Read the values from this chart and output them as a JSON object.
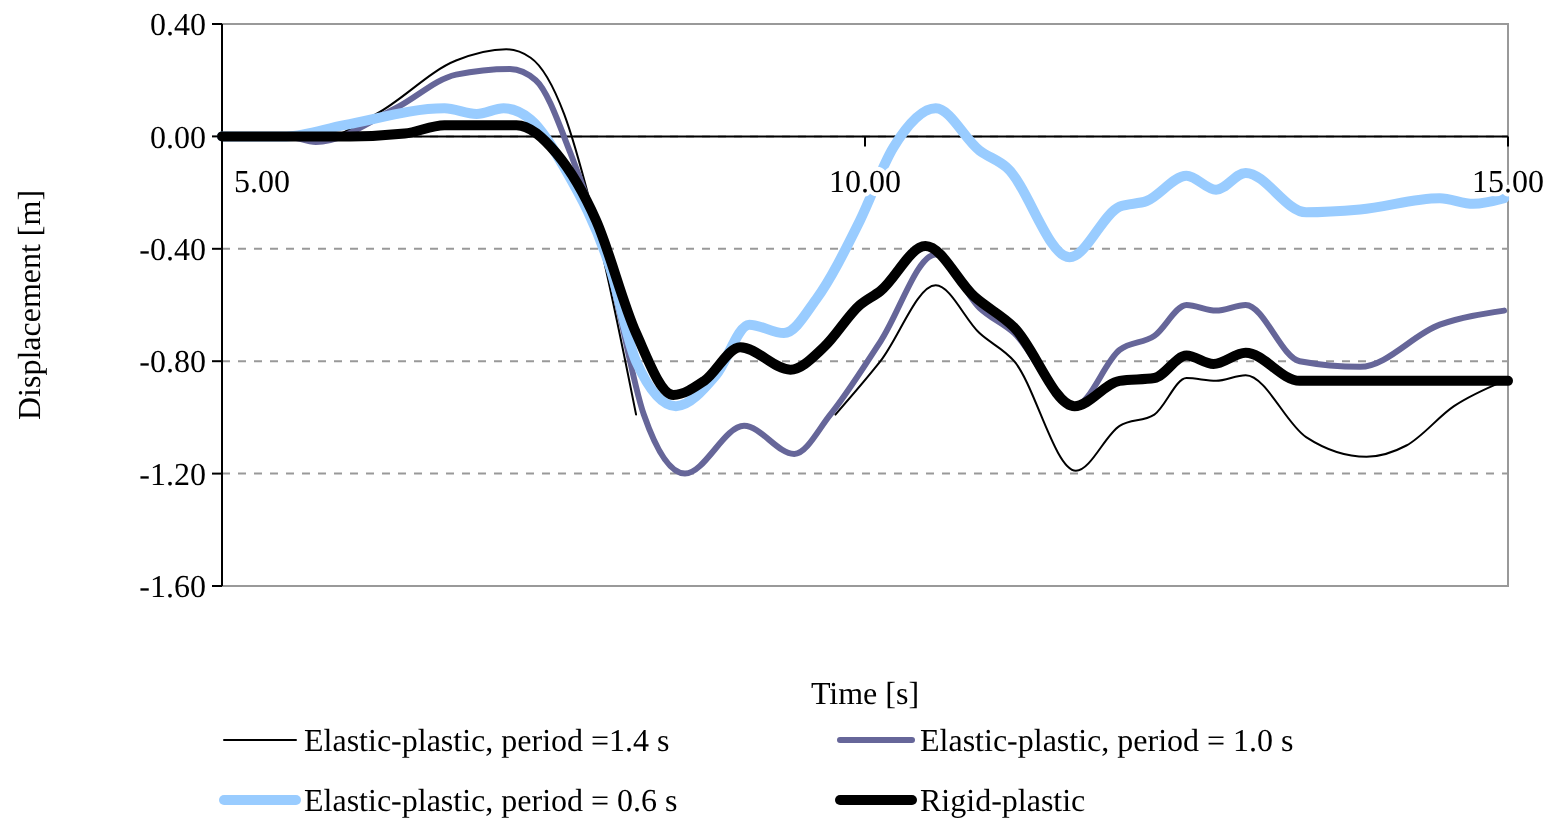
{
  "chart_data": {
    "type": "line",
    "xlabel": "Time [s]",
    "ylabel": "Displacement [m]",
    "xlim": [
      5,
      15
    ],
    "ylim": [
      -1.6,
      0.4
    ],
    "xticks": [
      {
        "value": 5,
        "label": "5.00"
      },
      {
        "value": 10,
        "label": "10.00"
      },
      {
        "value": 15,
        "label": "15.00"
      }
    ],
    "yticks": [
      {
        "value": -1.6,
        "label": "-1.60"
      },
      {
        "value": -1.2,
        "label": "-1.20"
      },
      {
        "value": -0.8,
        "label": "-0.80"
      },
      {
        "value": -0.4,
        "label": "-0.40"
      },
      {
        "value": 0,
        "label": "0.00"
      },
      {
        "value": 0.4,
        "label": "0.40"
      }
    ],
    "grid": "y",
    "legend": "bottom",
    "marker": "none",
    "line_style": "solid",
    "series": [
      {
        "name": "Elastic-plastic, period =1.4 s",
        "color": "#000000",
        "x": [
          5,
          5.5,
          5.75,
          6.2,
          6.82,
          7.21,
          7.4,
          7.66,
          7.86,
          8.22,
          8.6,
          9.06,
          9.45,
          9.77,
          10.12,
          10.55,
          10.89,
          11.16,
          11.64,
          11.98,
          12.25,
          12.5,
          12.73,
          12.96,
          13.43,
          13.9,
          14.21,
          14.58,
          14.97
        ],
        "values": [
          0,
          0,
          -0.01,
          0.08,
          0.27,
          0.31,
          0.28,
          0.08,
          -0.23,
          -0.99,
          null,
          null,
          null,
          -0.99,
          -0.8,
          -0.53,
          -0.7,
          -0.8,
          -1.19,
          -1.03,
          -0.99,
          -0.86,
          -0.87,
          -0.85,
          -1.07,
          -1.14,
          -1.1,
          -0.96,
          -0.87
        ]
      },
      {
        "name": "Elastic-plastic, period = 1.0 s",
        "color": "#666699",
        "x": [
          5,
          5.5,
          5.73,
          6.35,
          6.82,
          7.24,
          7.44,
          7.71,
          8.02,
          8.28,
          8.6,
          9.06,
          9.45,
          9.73,
          10.12,
          10.55,
          10.89,
          11.16,
          11.63,
          11.98,
          12.25,
          12.5,
          12.73,
          12.96,
          13.38,
          13.85,
          14.47,
          14.97
        ],
        "values": [
          0,
          0,
          -0.02,
          0.1,
          0.22,
          0.24,
          0.2,
          -0.06,
          -0.49,
          -0.99,
          -1.2,
          -1.03,
          -1.13,
          -0.99,
          -0.73,
          -0.42,
          -0.61,
          -0.7,
          -0.96,
          -0.76,
          -0.71,
          -0.6,
          -0.62,
          -0.6,
          -0.8,
          -0.82,
          -0.67,
          -0.62
        ]
      },
      {
        "name": "Elastic-plastic, period = 0.6 s",
        "color": "#99ccff",
        "x": [
          5,
          5.5,
          5.95,
          6.73,
          6.98,
          7.19,
          7.4,
          7.66,
          8.02,
          8.22,
          8.53,
          8.84,
          9.1,
          9.37,
          9.62,
          9.96,
          10.22,
          10.55,
          10.89,
          11.1,
          11.59,
          11.98,
          12.19,
          12.5,
          12.73,
          12.96,
          13.43,
          13.85,
          14.47,
          14.73,
          14.97
        ],
        "values": [
          0,
          0,
          0.04,
          0.1,
          0.08,
          0.1,
          0.06,
          -0.11,
          -0.47,
          -0.8,
          -0.96,
          -0.85,
          -0.67,
          -0.7,
          -0.58,
          -0.3,
          -0.04,
          0.1,
          -0.05,
          -0.11,
          -0.43,
          -0.25,
          -0.23,
          -0.14,
          -0.19,
          -0.13,
          -0.27,
          -0.26,
          -0.22,
          -0.24,
          -0.22
        ]
      },
      {
        "name": "Rigid-plastic",
        "color": "#000000",
        "x": [
          5,
          6.0,
          6.42,
          6.73,
          7.29,
          7.6,
          7.91,
          8.22,
          8.51,
          8.75,
          9.03,
          9.42,
          9.68,
          9.96,
          10.12,
          10.47,
          10.85,
          11.16,
          11.63,
          11.98,
          12.25,
          12.5,
          12.71,
          12.96,
          13.38,
          15
        ],
        "values": [
          0,
          0,
          0.01,
          0.04,
          0.04,
          -0.06,
          -0.3,
          -0.7,
          -0.92,
          -0.87,
          -0.75,
          -0.83,
          -0.75,
          -0.6,
          -0.55,
          -0.39,
          -0.57,
          -0.68,
          -0.96,
          -0.87,
          -0.86,
          -0.78,
          -0.81,
          -0.77,
          -0.87,
          -0.87
        ]
      }
    ]
  }
}
